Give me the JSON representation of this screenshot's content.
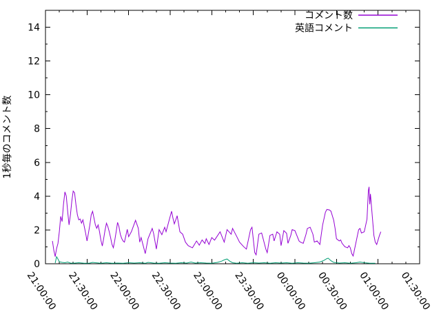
{
  "chart_data": {
    "type": "line",
    "title": "",
    "xlabel": "",
    "ylabel": "1秒毎のコメント数",
    "x_axis": {
      "kind": "time",
      "start_label": "21:00:00",
      "end_label": "01:30:00",
      "range_minutes": 270,
      "major_tick_minutes": 30,
      "minor_tick_minutes": 10,
      "tick_labels": [
        "21:00:00",
        "21:30:00",
        "22:00:00",
        "22:30:00",
        "23:00:00",
        "23:30:00",
        "00:00:00",
        "00:30:00",
        "01:00:00",
        "01:30:00"
      ]
    },
    "y_axis": {
      "ylim": [
        0,
        15
      ],
      "major_tick_step": 2,
      "minor_tick_step": 1,
      "tick_labels": [
        "0",
        "2",
        "4",
        "6",
        "8",
        "10",
        "12",
        "14"
      ]
    },
    "grid": false,
    "legend_position": "top-right-inside",
    "series": [
      {
        "name": "コメント数",
        "color": "#9400d3",
        "points_unit": "[minutes_after_21:00, comments_per_second]",
        "points": [
          [
            5,
            1.35
          ],
          [
            6,
            0.8
          ],
          [
            7,
            0.42
          ],
          [
            8,
            0.9
          ],
          [
            9,
            1.2
          ],
          [
            10,
            1.9
          ],
          [
            11,
            2.8
          ],
          [
            12,
            2.5
          ],
          [
            13,
            3.5
          ],
          [
            14,
            4.25
          ],
          [
            15,
            4.0
          ],
          [
            16,
            3.1
          ],
          [
            17,
            2.3
          ],
          [
            18,
            2.9
          ],
          [
            19,
            3.7
          ],
          [
            20,
            4.3
          ],
          [
            21,
            4.2
          ],
          [
            22,
            3.5
          ],
          [
            23,
            2.9
          ],
          [
            24,
            2.6
          ],
          [
            25,
            2.65
          ],
          [
            26,
            2.4
          ],
          [
            27,
            2.6
          ],
          [
            28,
            2.2
          ],
          [
            29,
            1.8
          ],
          [
            30,
            1.35
          ],
          [
            31,
            1.8
          ],
          [
            32,
            2.3
          ],
          [
            33,
            2.9
          ],
          [
            34,
            3.1
          ],
          [
            35,
            2.7
          ],
          [
            36,
            2.3
          ],
          [
            37,
            2.1
          ],
          [
            38,
            2.3
          ],
          [
            39,
            1.9
          ],
          [
            40,
            1.4
          ],
          [
            41,
            1.05
          ],
          [
            42,
            1.5
          ],
          [
            43,
            2.0
          ],
          [
            44,
            2.4
          ],
          [
            45,
            2.2
          ],
          [
            46,
            1.9
          ],
          [
            47,
            1.55
          ],
          [
            48,
            1.15
          ],
          [
            49,
            0.95
          ],
          [
            50,
            1.4
          ],
          [
            51,
            1.9
          ],
          [
            52,
            2.45
          ],
          [
            53,
            2.2
          ],
          [
            54,
            1.75
          ],
          [
            55,
            1.5
          ],
          [
            56,
            1.35
          ],
          [
            57,
            1.28
          ],
          [
            59,
            2.04
          ],
          [
            60,
            1.6
          ],
          [
            62,
            1.9
          ],
          [
            65,
            2.57
          ],
          [
            67,
            2.1
          ],
          [
            68,
            1.28
          ],
          [
            69,
            1.55
          ],
          [
            72,
            0.6
          ],
          [
            74,
            1.48
          ],
          [
            77,
            2.09
          ],
          [
            78,
            1.8
          ],
          [
            80,
            0.87
          ],
          [
            82,
            2.02
          ],
          [
            84,
            1.72
          ],
          [
            86,
            2.16
          ],
          [
            87,
            1.9
          ],
          [
            91,
            3.11
          ],
          [
            92,
            2.7
          ],
          [
            93,
            2.36
          ],
          [
            95,
            2.84
          ],
          [
            97,
            1.89
          ],
          [
            99,
            1.75
          ],
          [
            101,
            1.28
          ],
          [
            103,
            1.07
          ],
          [
            106,
            0.94
          ],
          [
            107,
            1.07
          ],
          [
            109,
            1.35
          ],
          [
            111,
            1.1
          ],
          [
            113,
            1.41
          ],
          [
            115,
            1.2
          ],
          [
            116,
            1.48
          ],
          [
            118,
            1.14
          ],
          [
            120,
            1.55
          ],
          [
            122,
            1.4
          ],
          [
            126,
            1.89
          ],
          [
            129,
            1.28
          ],
          [
            131,
            2.02
          ],
          [
            134,
            1.75
          ],
          [
            135,
            2.09
          ],
          [
            138,
            1.62
          ],
          [
            140,
            1.28
          ],
          [
            143,
            1.01
          ],
          [
            145,
            0.87
          ],
          [
            148,
            2.02
          ],
          [
            149,
            2.16
          ],
          [
            151,
            0.66
          ],
          [
            152,
            0.53
          ],
          [
            154,
            1.75
          ],
          [
            156,
            1.82
          ],
          [
            159,
            0.87
          ],
          [
            160,
            0.66
          ],
          [
            162,
            1.68
          ],
          [
            164,
            1.75
          ],
          [
            165,
            1.35
          ],
          [
            167,
            1.89
          ],
          [
            169,
            1.75
          ],
          [
            170,
            1.07
          ],
          [
            172,
            1.96
          ],
          [
            174,
            1.8
          ],
          [
            175,
            1.21
          ],
          [
            177,
            1.68
          ],
          [
            178,
            2.02
          ],
          [
            180,
            1.96
          ],
          [
            183,
            1.35
          ],
          [
            184,
            1.28
          ],
          [
            186,
            1.21
          ],
          [
            188,
            1.75
          ],
          [
            189,
            2.09
          ],
          [
            191,
            2.16
          ],
          [
            193,
            1.75
          ],
          [
            194,
            1.28
          ],
          [
            196,
            1.35
          ],
          [
            198,
            1.14
          ],
          [
            200,
            2.29
          ],
          [
            202,
            3.04
          ],
          [
            203,
            3.21
          ],
          [
            205,
            3.18
          ],
          [
            206,
            3.11
          ],
          [
            208,
            2.57
          ],
          [
            209,
            2.09
          ],
          [
            210,
            1.48
          ],
          [
            212,
            1.35
          ],
          [
            213,
            1.41
          ],
          [
            214,
            1.21
          ],
          [
            216,
            1.01
          ],
          [
            218,
            0.94
          ],
          [
            219,
            1.07
          ],
          [
            220,
            0.94
          ],
          [
            221,
            0.6
          ],
          [
            222,
            0.46
          ],
          [
            226,
            2.02
          ],
          [
            227,
            2.09
          ],
          [
            228,
            1.82
          ],
          [
            230,
            1.89
          ],
          [
            232,
            2.64
          ],
          [
            233,
            4.33
          ],
          [
            233.5,
            4.55
          ],
          [
            234,
            3.52
          ],
          [
            234.5,
            4.13
          ],
          [
            237,
            1.68
          ],
          [
            238,
            1.28
          ],
          [
            239,
            1.14
          ],
          [
            241,
            1.68
          ],
          [
            242,
            1.89
          ]
        ]
      },
      {
        "name": "英語コメント",
        "color": "#009e73",
        "points_unit": "[minutes_after_21:00, comments_per_second]",
        "points": [
          [
            7,
            0.04
          ],
          [
            8,
            0.42
          ],
          [
            9,
            0.28
          ],
          [
            10,
            0.12
          ],
          [
            12,
            0.08
          ],
          [
            14,
            0.06
          ],
          [
            16,
            0.1
          ],
          [
            18,
            0.04
          ],
          [
            20,
            0.03
          ],
          [
            24,
            0.06
          ],
          [
            28,
            0.03
          ],
          [
            32,
            0.04
          ],
          [
            34,
            0.08
          ],
          [
            36,
            0.06
          ],
          [
            40,
            0.03
          ],
          [
            44,
            0.06
          ],
          [
            48,
            0.03
          ],
          [
            52,
            0.04
          ],
          [
            56,
            0.03
          ],
          [
            60,
            0.06
          ],
          [
            64,
            0.04
          ],
          [
            68,
            0.06
          ],
          [
            72,
            0.03
          ],
          [
            74,
            0.08
          ],
          [
            78,
            0.04
          ],
          [
            82,
            0.03
          ],
          [
            86,
            0.06
          ],
          [
            90,
            0.04
          ],
          [
            94,
            0.03
          ],
          [
            98,
            0.06
          ],
          [
            102,
            0.04
          ],
          [
            105,
            0.1
          ],
          [
            108,
            0.04
          ],
          [
            112,
            0.06
          ],
          [
            116,
            0.04
          ],
          [
            120,
            0.03
          ],
          [
            124,
            0.08
          ],
          [
            127,
            0.15
          ],
          [
            129,
            0.23
          ],
          [
            131,
            0.28
          ],
          [
            133,
            0.15
          ],
          [
            135,
            0.06
          ],
          [
            138,
            0.03
          ],
          [
            142,
            0.06
          ],
          [
            146,
            0.03
          ],
          [
            150,
            0.06
          ],
          [
            154,
            0.04
          ],
          [
            158,
            0.06
          ],
          [
            162,
            0.03
          ],
          [
            166,
            0.06
          ],
          [
            170,
            0.04
          ],
          [
            174,
            0.06
          ],
          [
            178,
            0.03
          ],
          [
            182,
            0.06
          ],
          [
            186,
            0.04
          ],
          [
            190,
            0.03
          ],
          [
            194,
            0.06
          ],
          [
            198,
            0.1
          ],
          [
            201,
            0.2
          ],
          [
            203,
            0.3
          ],
          [
            204,
            0.33
          ],
          [
            206,
            0.18
          ],
          [
            208,
            0.08
          ],
          [
            212,
            0.04
          ],
          [
            216,
            0.06
          ],
          [
            220,
            0.03
          ],
          [
            224,
            0.06
          ],
          [
            227,
            0.1
          ],
          [
            230,
            0.06
          ],
          [
            234,
            0.03
          ],
          [
            238,
            0.03
          ]
        ]
      }
    ],
    "colors": {
      "background": "#ffffff",
      "axis": "#000000",
      "text": "#000000"
    }
  }
}
